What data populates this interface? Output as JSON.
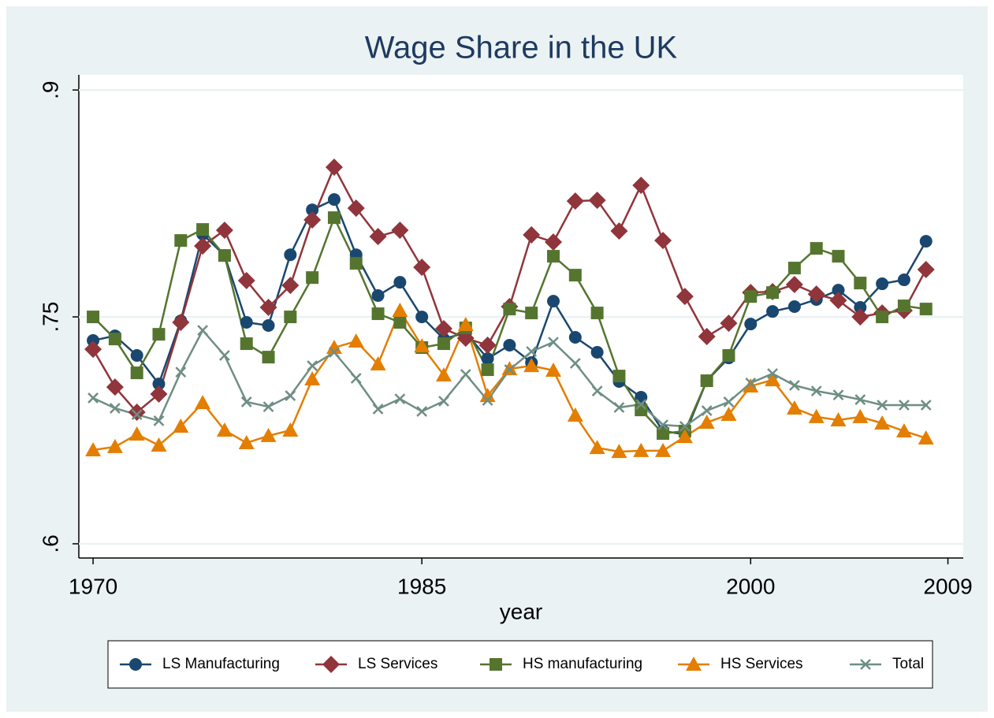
{
  "chart_data": {
    "type": "line",
    "title": "Wage Share in the UK",
    "x_label": "year",
    "x": [
      1970,
      1971,
      1972,
      1973,
      1974,
      1975,
      1976,
      1977,
      1978,
      1979,
      1980,
      1981,
      1982,
      1983,
      1984,
      1985,
      1986,
      1987,
      1988,
      1989,
      1990,
      1991,
      1992,
      1993,
      1994,
      1995,
      1996,
      1997,
      1998,
      1999,
      2000,
      2001,
      2002,
      2003,
      2004,
      2005,
      2006,
      2007,
      2008
    ],
    "xlim": [
      1969.35,
      2009.7
    ],
    "xticks": [
      1970,
      1985,
      2000,
      2009
    ],
    "ylim": [
      0.5906,
      0.91
    ],
    "yticks": [
      {
        "value": 0.6,
        "label": ".6"
      },
      {
        "value": 0.75,
        "label": ".75"
      },
      {
        "value": 0.9,
        "label": ".9"
      }
    ],
    "grid": true,
    "legend": "bottom",
    "series": [
      {
        "name": "LS Manufacturing",
        "color": "#1a476f",
        "marker": "circle",
        "values": [
          0.7344,
          0.7375,
          0.7245,
          0.7057,
          0.7474,
          0.8047,
          0.7906,
          0.7464,
          0.7443,
          0.7911,
          0.8208,
          0.8276,
          0.7911,
          0.7641,
          0.7729,
          0.75,
          0.7354,
          0.7396,
          0.7224,
          0.7313,
          0.7198,
          0.7604,
          0.7365,
          0.7266,
          0.7073,
          0.6969,
          0.6745,
          0.6724,
          0.7078,
          0.7229,
          0.7453,
          0.7536,
          0.7568,
          0.7615,
          0.7677,
          0.7563,
          0.7719,
          0.7745,
          0.8
        ]
      },
      {
        "name": "LS Services",
        "color": "#90353b",
        "marker": "diamond",
        "values": [
          0.7286,
          0.7036,
          0.687,
          0.699,
          0.7464,
          0.7969,
          0.8073,
          0.774,
          0.7563,
          0.7708,
          0.8141,
          0.849,
          0.8219,
          0.8031,
          0.8073,
          0.7828,
          0.7422,
          0.7359,
          0.7313,
          0.7568,
          0.8042,
          0.7995,
          0.8266,
          0.8271,
          0.8068,
          0.837,
          0.8005,
          0.7635,
          0.737,
          0.7458,
          0.7661,
          0.7667,
          0.7714,
          0.7651,
          0.7609,
          0.75,
          0.7526,
          0.7542,
          0.7813
        ]
      },
      {
        "name": "HS manufacturing",
        "color": "#55752f",
        "marker": "square",
        "values": [
          0.75,
          0.7354,
          0.713,
          0.7385,
          0.8005,
          0.8078,
          0.7906,
          0.7323,
          0.7234,
          0.75,
          0.776,
          0.8156,
          0.7854,
          0.7521,
          0.7464,
          0.7297,
          0.7323,
          0.7427,
          0.7151,
          0.7552,
          0.7526,
          0.7901,
          0.7776,
          0.7526,
          0.7109,
          0.6885,
          0.6729,
          0.6745,
          0.7078,
          0.7245,
          0.7635,
          0.7661,
          0.7823,
          0.7953,
          0.7901,
          0.7724,
          0.75,
          0.7573,
          0.7552
        ]
      },
      {
        "name": "HS Services",
        "color": "#e37e00",
        "marker": "triangle",
        "values": [
          0.662,
          0.6641,
          0.6724,
          0.6651,
          0.6776,
          0.6932,
          0.675,
          0.6667,
          0.6714,
          0.675,
          0.7089,
          0.7297,
          0.7339,
          0.7188,
          0.7542,
          0.7307,
          0.7115,
          0.7448,
          0.6979,
          0.7156,
          0.7177,
          0.7146,
          0.6849,
          0.6635,
          0.6609,
          0.6615,
          0.6615,
          0.6708,
          0.6802,
          0.6854,
          0.7042,
          0.7083,
          0.6896,
          0.6839,
          0.6818,
          0.6839,
          0.6797,
          0.6745,
          0.6698
        ]
      },
      {
        "name": "Total",
        "color": "#6e8e84",
        "marker": "x",
        "values": [
          0.6964,
          0.6896,
          0.6854,
          0.6813,
          0.7135,
          0.7411,
          0.7245,
          0.6938,
          0.6906,
          0.6979,
          0.7177,
          0.7266,
          0.7094,
          0.6891,
          0.6958,
          0.6875,
          0.6943,
          0.712,
          0.6948,
          0.7151,
          0.7271,
          0.7333,
          0.7193,
          0.701,
          0.6901,
          0.6922,
          0.6786,
          0.6776,
          0.688,
          0.6938,
          0.7063,
          0.7125,
          0.7047,
          0.701,
          0.6984,
          0.6953,
          0.6917,
          0.6917,
          0.6917
        ]
      }
    ]
  }
}
